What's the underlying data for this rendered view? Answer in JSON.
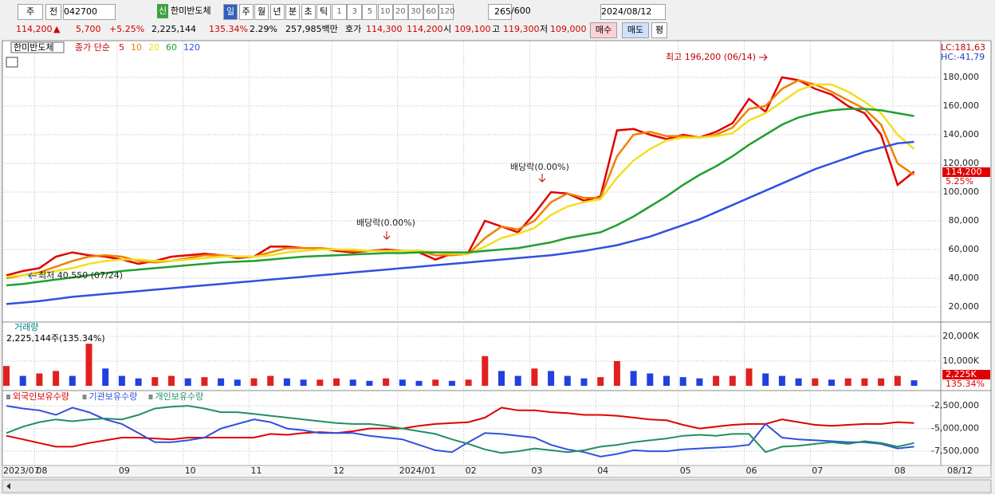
{
  "toolbar": {
    "period_dropdown": "주",
    "prev": "전",
    "code": "042700",
    "badge": "신",
    "name": "한미반도체",
    "intervals": [
      "일",
      "주",
      "월",
      "년",
      "분",
      "초",
      "틱"
    ],
    "multipliers": [
      "1",
      "3",
      "5",
      "10",
      "20",
      "30",
      "60",
      "120"
    ],
    "count": "265",
    "max_count": "/600",
    "date": "2024/08/12"
  },
  "quote": {
    "price": "114,200",
    "direction": "▲",
    "change": "5,700",
    "change_pct": "+5.25%",
    "volume": "2,225,144",
    "volume_ratio": "135.34%",
    "turnover": "2.29%",
    "amount": "257,985백만",
    "ask_label": "호가",
    "ask": "114,300",
    "bid": "114,200",
    "open_label": "시",
    "open": "109,100",
    "high_label": "고",
    "high": "119,300",
    "low_label": "저",
    "low": "109,000",
    "buy": "매수",
    "sell": "매도",
    "avg": "평"
  },
  "chart_data": [
    {
      "type": "line",
      "title": "한미반도체",
      "legend_prefix": "종가 단순",
      "lc": "LC:181,63",
      "hc": "HC:-41,79",
      "high_annotation": "최고 196,200 (06/14)",
      "low_annotation": "최저 40,550 (07/24)",
      "dividend_annotations": [
        "배당락(0.00%)",
        "배당락(0.00%)"
      ],
      "last_price_label": "114,200",
      "last_change_label": "5.25%",
      "ylim": [
        10000,
        205000
      ],
      "yticks": [
        {
          "value": 20000,
          "label": "20,000"
        },
        {
          "value": 40000,
          "label": "40,000"
        },
        {
          "value": 60000,
          "label": "60,000"
        },
        {
          "value": 80000,
          "label": "80,000"
        },
        {
          "value": 100000,
          "label": "100,000"
        },
        {
          "value": 120000,
          "label": "120,000"
        },
        {
          "value": 140000,
          "label": "140,000"
        },
        {
          "value": 160000,
          "label": "160,000"
        },
        {
          "value": 180000,
          "label": "180,000"
        }
      ],
      "grid": true,
      "series": [
        {
          "name": "5",
          "color": "#e00000",
          "values": [
            42000,
            45000,
            47000,
            55000,
            58000,
            56000,
            55000,
            53000,
            50000,
            52000,
            55000,
            56000,
            57000,
            56000,
            54000,
            55000,
            62000,
            62000,
            61000,
            61000,
            59000,
            58000,
            59000,
            60000,
            59000,
            58000,
            53000,
            57000,
            58000,
            80000,
            76000,
            72000,
            85000,
            100000,
            99000,
            94000,
            97000,
            143000,
            144000,
            140000,
            137000,
            140000,
            138000,
            142000,
            148000,
            165000,
            156000,
            180000,
            178000,
            172000,
            168000,
            160000,
            155000,
            140000,
            105000,
            114200
          ]
        },
        {
          "name": "10",
          "color": "#f08000",
          "values": [
            40000,
            42000,
            44000,
            48000,
            52000,
            55000,
            56000,
            55000,
            52000,
            51000,
            52000,
            54000,
            56000,
            56000,
            55000,
            55000,
            58000,
            61000,
            61000,
            61000,
            60000,
            59000,
            59000,
            59000,
            59000,
            59000,
            56000,
            56000,
            57000,
            68000,
            76000,
            74000,
            80000,
            93000,
            99000,
            96000,
            96000,
            125000,
            140000,
            142000,
            139000,
            139000,
            138000,
            140000,
            145000,
            158000,
            160000,
            172000,
            178000,
            175000,
            170000,
            164000,
            158000,
            147000,
            120000,
            112000
          ]
        },
        {
          "name": "20",
          "color": "#f0e020",
          "values": [
            41000,
            42000,
            43000,
            45000,
            47000,
            50000,
            52000,
            53000,
            53000,
            52000,
            52000,
            53000,
            54000,
            55000,
            55000,
            55000,
            56000,
            58000,
            59000,
            60000,
            60000,
            60000,
            59000,
            59000,
            59000,
            59000,
            58000,
            57000,
            57000,
            62000,
            68000,
            71000,
            75000,
            84000,
            90000,
            93000,
            95000,
            110000,
            122000,
            130000,
            136000,
            138000,
            138000,
            139000,
            141000,
            150000,
            155000,
            163000,
            171000,
            175000,
            175000,
            170000,
            163000,
            155000,
            140000,
            130000
          ]
        },
        {
          "name": "60",
          "color": "#20a030",
          "values": [
            35000,
            36000,
            37500,
            39000,
            40500,
            42000,
            43500,
            45000,
            46000,
            47000,
            48000,
            49000,
            50000,
            51000,
            51500,
            52000,
            53000,
            54000,
            55000,
            55500,
            56000,
            56500,
            57000,
            57500,
            57500,
            58000,
            58000,
            58000,
            58000,
            59000,
            60000,
            61000,
            63000,
            65000,
            68000,
            70000,
            72000,
            77000,
            83000,
            90000,
            97000,
            105000,
            112000,
            118000,
            125000,
            133000,
            140000,
            147000,
            152000,
            155000,
            157000,
            158000,
            158000,
            157000,
            155000,
            153000
          ]
        },
        {
          "name": "120",
          "color": "#3050e0",
          "values": [
            22000,
            23000,
            24000,
            25500,
            27000,
            28000,
            29000,
            30000,
            31000,
            32000,
            33000,
            34000,
            35000,
            36000,
            37000,
            38000,
            39000,
            40000,
            41000,
            42000,
            43000,
            44000,
            45000,
            46000,
            47000,
            48000,
            49000,
            50000,
            51000,
            52000,
            53000,
            54000,
            55000,
            56000,
            57500,
            59000,
            61000,
            63000,
            66000,
            69000,
            73000,
            77000,
            81000,
            86000,
            91000,
            96000,
            101000,
            106000,
            111000,
            116000,
            120000,
            124000,
            128000,
            131000,
            134000,
            135000
          ]
        }
      ]
    },
    {
      "type": "bar",
      "title": "거래량",
      "subtitle": "2,225,144주(135.34%)",
      "last_label": "2,225K",
      "last_ratio": "135.34%",
      "ylim": [
        0,
        24500
      ],
      "yticks": [
        {
          "value": 10000,
          "label": "10,000K"
        },
        {
          "value": 20000,
          "label": "20,000K"
        }
      ],
      "grid": true,
      "up_color": "#e02020",
      "down_color": "#2040e0",
      "values": [
        8000,
        4000,
        5000,
        6000,
        4000,
        17000,
        7000,
        4000,
        3000,
        3500,
        4000,
        3000,
        3500,
        3000,
        2500,
        3000,
        4000,
        3000,
        2500,
        2500,
        3000,
        2500,
        2000,
        3000,
        2500,
        2000,
        2500,
        2000,
        2500,
        12000,
        6000,
        4000,
        7000,
        6000,
        4000,
        3000,
        3500,
        10000,
        6000,
        5000,
        4000,
        3500,
        3000,
        4000,
        4000,
        7000,
        5000,
        4000,
        3000,
        3000,
        2500,
        3000,
        3000,
        3000,
        4000,
        2225
      ]
    },
    {
      "type": "line",
      "last_date": "08/12",
      "categories": [
        "2023/07",
        null,
        "08",
        null,
        null,
        null,
        null,
        "09",
        null,
        null,
        null,
        "10",
        null,
        null,
        null,
        "11",
        null,
        null,
        null,
        null,
        "12",
        null,
        null,
        null,
        "2024/01",
        null,
        null,
        null,
        "02",
        null,
        null,
        null,
        "03",
        null,
        null,
        null,
        "04",
        null,
        null,
        null,
        null,
        "05",
        null,
        null,
        null,
        "06",
        null,
        null,
        null,
        "07",
        null,
        null,
        null,
        null,
        "08",
        null
      ],
      "ylim": [
        -8900000,
        -1000000
      ],
      "yticks": [
        {
          "value": -7500000,
          "label": "-7,500,000"
        },
        {
          "value": -5000000,
          "label": "-5,000,000"
        },
        {
          "value": -2500000,
          "label": "-2,500,000"
        }
      ],
      "grid": true,
      "series": [
        {
          "name": "외국인보유수량",
          "color": "#e00000",
          "values": [
            -5800000,
            -6200000,
            -6600000,
            -7000000,
            -7000000,
            -6600000,
            -6300000,
            -6000000,
            -6000000,
            -6100000,
            -6200000,
            -6000000,
            -6000000,
            -6000000,
            -6000000,
            -6000000,
            -5600000,
            -5700000,
            -5500000,
            -5400000,
            -5500000,
            -5300000,
            -5000000,
            -5000000,
            -5000000,
            -4700000,
            -4500000,
            -4400000,
            -4300000,
            -3800000,
            -2700000,
            -3000000,
            -3000000,
            -3200000,
            -3300000,
            -3500000,
            -3500000,
            -3600000,
            -3800000,
            -4000000,
            -4100000,
            -4600000,
            -5000000,
            -4800000,
            -4600000,
            -4500000,
            -4500000,
            -4000000,
            -4300000,
            -4600000,
            -4700000,
            -4600000,
            -4500000,
            -4500000,
            -4300000,
            -4400000
          ]
        },
        {
          "name": "기관보유수량",
          "color": "#3050e0",
          "values": [
            -2500000,
            -2800000,
            -3000000,
            -3500000,
            -2700000,
            -3200000,
            -4000000,
            -4500000,
            -5500000,
            -6500000,
            -6500000,
            -6300000,
            -6000000,
            -5000000,
            -4500000,
            -4000000,
            -4300000,
            -5000000,
            -5200000,
            -5500000,
            -5500000,
            -5500000,
            -5800000,
            -6000000,
            -6200000,
            -6800000,
            -7400000,
            -7600000,
            -6500000,
            -5500000,
            -5600000,
            -5800000,
            -6000000,
            -6800000,
            -7300000,
            -7600000,
            -8100000,
            -7800000,
            -7400000,
            -7500000,
            -7500000,
            -7300000,
            -7200000,
            -7100000,
            -7000000,
            -6800000,
            -4500000,
            -6000000,
            -6200000,
            -6300000,
            -6400000,
            -6500000,
            -6500000,
            -6700000,
            -7200000,
            -7000000
          ]
        },
        {
          "name": "개인보유수량",
          "color": "#209060",
          "values": [
            -5500000,
            -4800000,
            -4300000,
            -4000000,
            -4200000,
            -4000000,
            -3900000,
            -4000000,
            -3500000,
            -2800000,
            -2600000,
            -2500000,
            -2800000,
            -3200000,
            -3200000,
            -3400000,
            -3600000,
            -3800000,
            -4000000,
            -4200000,
            -4400000,
            -4500000,
            -4500000,
            -4700000,
            -5000000,
            -5300000,
            -5600000,
            -6200000,
            -6700000,
            -7300000,
            -7700000,
            -7500000,
            -7200000,
            -7400000,
            -7600000,
            -7400000,
            -7000000,
            -6800000,
            -6500000,
            -6300000,
            -6100000,
            -5800000,
            -5700000,
            -5800000,
            -5600000,
            -5600000,
            -7600000,
            -7000000,
            -6900000,
            -6700000,
            -6500000,
            -6700000,
            -6400000,
            -6600000,
            -7000000,
            -6600000
          ]
        }
      ]
    }
  ]
}
